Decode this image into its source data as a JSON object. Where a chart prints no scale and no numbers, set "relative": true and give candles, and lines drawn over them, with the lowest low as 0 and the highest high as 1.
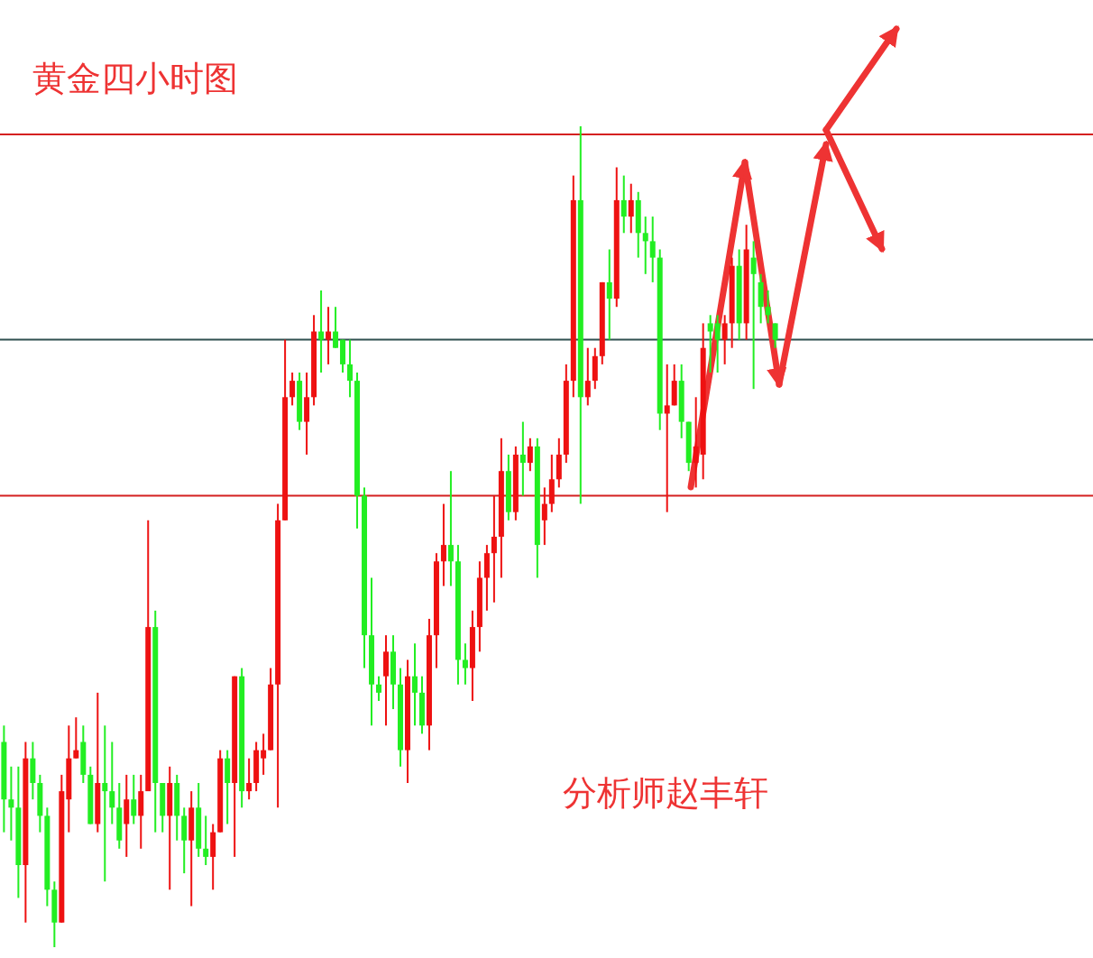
{
  "chart_data": {
    "type": "candlestick",
    "title": "黄金四小时图",
    "annotations": [
      "分析师赵丰轩"
    ],
    "relative": true,
    "categories": [
      null,
      null,
      null,
      null,
      null,
      null,
      null,
      null,
      null,
      null,
      null,
      null,
      null,
      null,
      null,
      null,
      null,
      null,
      null,
      null,
      null,
      null,
      null,
      null,
      null,
      null,
      null,
      null,
      null,
      null,
      null,
      null,
      null,
      null,
      null,
      null,
      null,
      null,
      null,
      null,
      null,
      null,
      null,
      null,
      null,
      null,
      null,
      null,
      null,
      null,
      null,
      null,
      null,
      null,
      null,
      null,
      null,
      null,
      null,
      null,
      null,
      null,
      null,
      null,
      null,
      null,
      null,
      null,
      null,
      null,
      null,
      null,
      null,
      null,
      null,
      null,
      null,
      null,
      null,
      null,
      null,
      null,
      null,
      null,
      null,
      null,
      null,
      null,
      null,
      null,
      null,
      null,
      null,
      null,
      null,
      null,
      null,
      null,
      null,
      null,
      null,
      null,
      null,
      null,
      null,
      null,
      null,
      null
    ],
    "ohlc": [
      [
        0.25,
        0.27,
        0.14,
        0.18
      ],
      [
        0.18,
        0.22,
        0.13,
        0.17
      ],
      [
        0.17,
        0.22,
        0.06,
        0.1
      ],
      [
        0.1,
        0.25,
        0.03,
        0.23
      ],
      [
        0.23,
        0.25,
        0.18,
        0.2
      ],
      [
        0.2,
        0.21,
        0.14,
        0.16
      ],
      [
        0.16,
        0.17,
        0.05,
        0.07
      ],
      [
        0.07,
        0.08,
        0,
        0.03
      ],
      [
        0.03,
        0.21,
        0.03,
        0.19
      ],
      [
        0.18,
        0.27,
        0.14,
        0.23
      ],
      [
        0.23,
        0.28,
        0.23,
        0.24
      ],
      [
        0.25,
        0.27,
        0.2,
        0.21
      ],
      [
        0.21,
        0.22,
        0.15,
        0.15
      ],
      [
        0.15,
        0.31,
        0.14,
        0.2
      ],
      [
        0.2,
        0.27,
        0.08,
        0.19
      ],
      [
        0.19,
        0.25,
        0.15,
        0.17
      ],
      [
        0.17,
        0.2,
        0.12,
        0.13
      ],
      [
        0.15,
        0.21,
        0.11,
        0.18
      ],
      [
        0.18,
        0.21,
        0.15,
        0.16
      ],
      [
        0.16,
        0.21,
        0.12,
        0.19
      ],
      [
        0.19,
        0.52,
        0.19,
        0.39
      ],
      [
        0.39,
        0.41,
        0.14,
        0.2
      ],
      [
        0.2,
        0.2,
        0.14,
        0.16
      ],
      [
        0.16,
        0.22,
        0.07,
        0.2
      ],
      [
        0.2,
        0.21,
        0.13,
        0.16
      ],
      [
        0.16,
        0.17,
        0.09,
        0.13
      ],
      [
        0.13,
        0.19,
        0.05,
        0.17
      ],
      [
        0.17,
        0.2,
        0.11,
        0.12
      ],
      [
        0.12,
        0.16,
        0.1,
        0.11
      ],
      [
        0.11,
        0.15,
        0.07,
        0.14
      ],
      [
        0.14,
        0.24,
        0.14,
        0.23
      ],
      [
        0.23,
        0.24,
        0.15,
        0.2
      ],
      [
        0.2,
        0.33,
        0.11,
        0.33
      ],
      [
        0.33,
        0.34,
        0.17,
        0.19
      ],
      [
        0.19,
        0.23,
        0.18,
        0.2
      ],
      [
        0.2,
        0.25,
        0.19,
        0.24
      ],
      [
        0.23,
        0.26,
        0.21,
        0.24
      ],
      [
        0.24,
        0.34,
        0.24,
        0.32
      ],
      [
        0.32,
        0.54,
        0.17,
        0.52
      ],
      [
        0.52,
        0.74,
        0.52,
        0.67
      ],
      [
        0.67,
        0.7,
        0.66,
        0.69
      ],
      [
        0.69,
        0.7,
        0.63,
        0.64
      ],
      [
        0.64,
        0.7,
        0.6,
        0.67
      ],
      [
        0.67,
        0.77,
        0.66,
        0.75
      ],
      [
        0.75,
        0.8,
        0.7,
        0.74
      ],
      [
        0.74,
        0.78,
        0.71,
        0.75
      ],
      [
        0.75,
        0.78,
        0.73,
        0.73
      ],
      [
        0.74,
        0.74,
        0.7,
        0.71
      ],
      [
        0.71,
        0.74,
        0.67,
        0.69
      ],
      [
        0.69,
        0.7,
        0.51,
        0.55
      ],
      [
        0.55,
        0.56,
        0.34,
        0.38
      ],
      [
        0.38,
        0.45,
        0.27,
        0.32
      ],
      [
        0.32,
        0.33,
        0.3,
        0.31
      ],
      [
        0.33,
        0.38,
        0.27,
        0.36
      ],
      [
        0.36,
        0.38,
        0.29,
        0.32
      ],
      [
        0.32,
        0.34,
        0.22,
        0.24
      ],
      [
        0.24,
        0.35,
        0.2,
        0.33
      ],
      [
        0.33,
        0.37,
        0.27,
        0.31
      ],
      [
        0.31,
        0.33,
        0.26,
        0.27
      ],
      [
        0.27,
        0.4,
        0.24,
        0.38
      ],
      [
        0.38,
        0.48,
        0.34,
        0.47
      ],
      [
        0.47,
        0.54,
        0.44,
        0.49
      ],
      [
        0.49,
        0.58,
        0.44,
        0.47
      ],
      [
        0.47,
        0.49,
        0.32,
        0.35
      ],
      [
        0.35,
        0.37,
        0.32,
        0.34
      ],
      [
        0.34,
        0.41,
        0.3,
        0.39
      ],
      [
        0.39,
        0.47,
        0.36,
        0.45
      ],
      [
        0.45,
        0.49,
        0.41,
        0.48
      ],
      [
        0.48,
        0.55,
        0.42,
        0.5
      ],
      [
        0.5,
        0.62,
        0.45,
        0.58
      ],
      [
        0.58,
        0.6,
        0.52,
        0.53
      ],
      [
        0.53,
        0.61,
        0.52,
        0.6
      ],
      [
        0.6,
        0.64,
        0.55,
        0.59
      ],
      [
        0.59,
        0.62,
        0.58,
        0.61
      ],
      [
        0.61,
        0.62,
        0.45,
        0.49
      ],
      [
        0.52,
        0.56,
        0.49,
        0.54
      ],
      [
        0.54,
        0.6,
        0.53,
        0.57
      ],
      [
        0.57,
        0.62,
        0.56,
        0.6
      ],
      [
        0.6,
        0.71,
        0.59,
        0.69
      ],
      [
        0.69,
        0.94,
        0.67,
        0.91
      ],
      [
        0.91,
        1,
        0.54,
        0.67
      ],
      [
        0.67,
        0.73,
        0.66,
        0.69
      ],
      [
        0.69,
        0.73,
        0.68,
        0.72
      ],
      [
        0.72,
        0.81,
        0.71,
        0.81
      ],
      [
        0.81,
        0.85,
        0.74,
        0.79
      ],
      [
        0.79,
        0.95,
        0.78,
        0.91
      ],
      [
        0.91,
        0.94,
        0.87,
        0.89
      ],
      [
        0.89,
        0.93,
        0.87,
        0.91
      ],
      [
        0.91,
        0.92,
        0.84,
        0.87
      ],
      [
        0.87,
        0.89,
        0.82,
        0.86
      ],
      [
        0.86,
        0.89,
        0.81,
        0.84
      ],
      [
        0.84,
        0.85,
        0.63,
        0.65
      ],
      [
        0.65,
        0.71,
        0.53,
        0.66
      ],
      [
        0.66,
        0.71,
        0.66,
        0.69
      ],
      [
        0.69,
        0.71,
        0.62,
        0.64
      ],
      [
        0.64,
        0.64,
        0.58,
        0.59
      ],
      [
        0.59,
        0.67,
        0.56,
        0.61
      ],
      [
        0.6,
        0.76,
        0.57,
        0.73
      ],
      [
        0.76,
        0.77,
        0.7,
        0.75
      ],
      [
        0.76,
        0.77,
        0.7,
        0.74
      ],
      [
        0.74,
        0.77,
        0.71,
        0.76
      ],
      [
        0.76,
        0.84,
        0.73,
        0.83
      ],
      [
        0.83,
        0.85,
        0.74,
        0.76
      ],
      [
        0.76,
        0.88,
        0.74,
        0.85
      ],
      [
        0.84,
        0.86,
        0.68,
        0.82
      ],
      [
        0.81,
        0.82,
        0.76,
        0.78
      ],
      [
        0.78,
        0.8,
        0.76,
        0.77
      ],
      [
        0.76,
        0.76,
        0.73,
        0.74
      ]
    ],
    "colors": [
      "#22ee22",
      "#22ee22",
      "#22ee22",
      "#ee1111",
      "#22ee22",
      "#22ee22",
      "#22ee22",
      "#22ee22",
      "#ee1111",
      "#ee1111",
      "#ee1111",
      "#22ee22",
      "#22ee22",
      "#ee1111",
      "#22ee22",
      "#22ee22",
      "#22ee22",
      "#ee1111",
      "#22ee22",
      "#ee1111",
      "#ee1111",
      "#22ee22",
      "#22ee22",
      "#ee1111",
      "#22ee22",
      "#22ee22",
      "#ee1111",
      "#22ee22",
      "#22ee22",
      "#ee1111",
      "#ee1111",
      "#22ee22",
      "#ee1111",
      "#22ee22",
      "#ee1111",
      "#ee1111",
      "#ee1111",
      "#ee1111",
      "#ee1111",
      "#ee1111",
      "#ee1111",
      "#22ee22",
      "#ee1111",
      "#ee1111",
      "#22ee22",
      "#ee1111",
      "#22ee22",
      "#22ee22",
      "#22ee22",
      "#22ee22",
      "#22ee22",
      "#22ee22",
      "#22ee22",
      "#ee1111",
      "#22ee22",
      "#22ee22",
      "#ee1111",
      "#22ee22",
      "#22ee22",
      "#ee1111",
      "#ee1111",
      "#ee1111",
      "#22ee22",
      "#22ee22",
      "#22ee22",
      "#ee1111",
      "#ee1111",
      "#ee1111",
      "#ee1111",
      "#ee1111",
      "#22ee22",
      "#ee1111",
      "#22ee22",
      "#ee1111",
      "#22ee22",
      "#ee1111",
      "#ee1111",
      "#ee1111",
      "#ee1111",
      "#ee1111",
      "#22ee22",
      "#ee1111",
      "#ee1111",
      "#ee1111",
      "#22ee22",
      "#ee1111",
      "#22ee22",
      "#ee1111",
      "#22ee22",
      "#22ee22",
      "#22ee22",
      "#22ee22",
      "#ee1111",
      "#ee1111",
      "#22ee22",
      "#22ee22",
      "#ee1111",
      "#ee1111",
      "#22ee22",
      "#22ee22",
      "#ee1111",
      "#ee1111",
      "#22ee22",
      "#ee1111",
      "#22ee22",
      "#22ee22",
      "#22ee22",
      "#22ee22"
    ],
    "ref_lines": [
      {
        "axis": "y",
        "value": 0.99,
        "color": "#d42020"
      },
      {
        "axis": "y",
        "value": 0.74,
        "color": "#2f4f4f"
      },
      {
        "axis": "y",
        "value": 0.55,
        "color": "#d42020"
      }
    ]
  }
}
